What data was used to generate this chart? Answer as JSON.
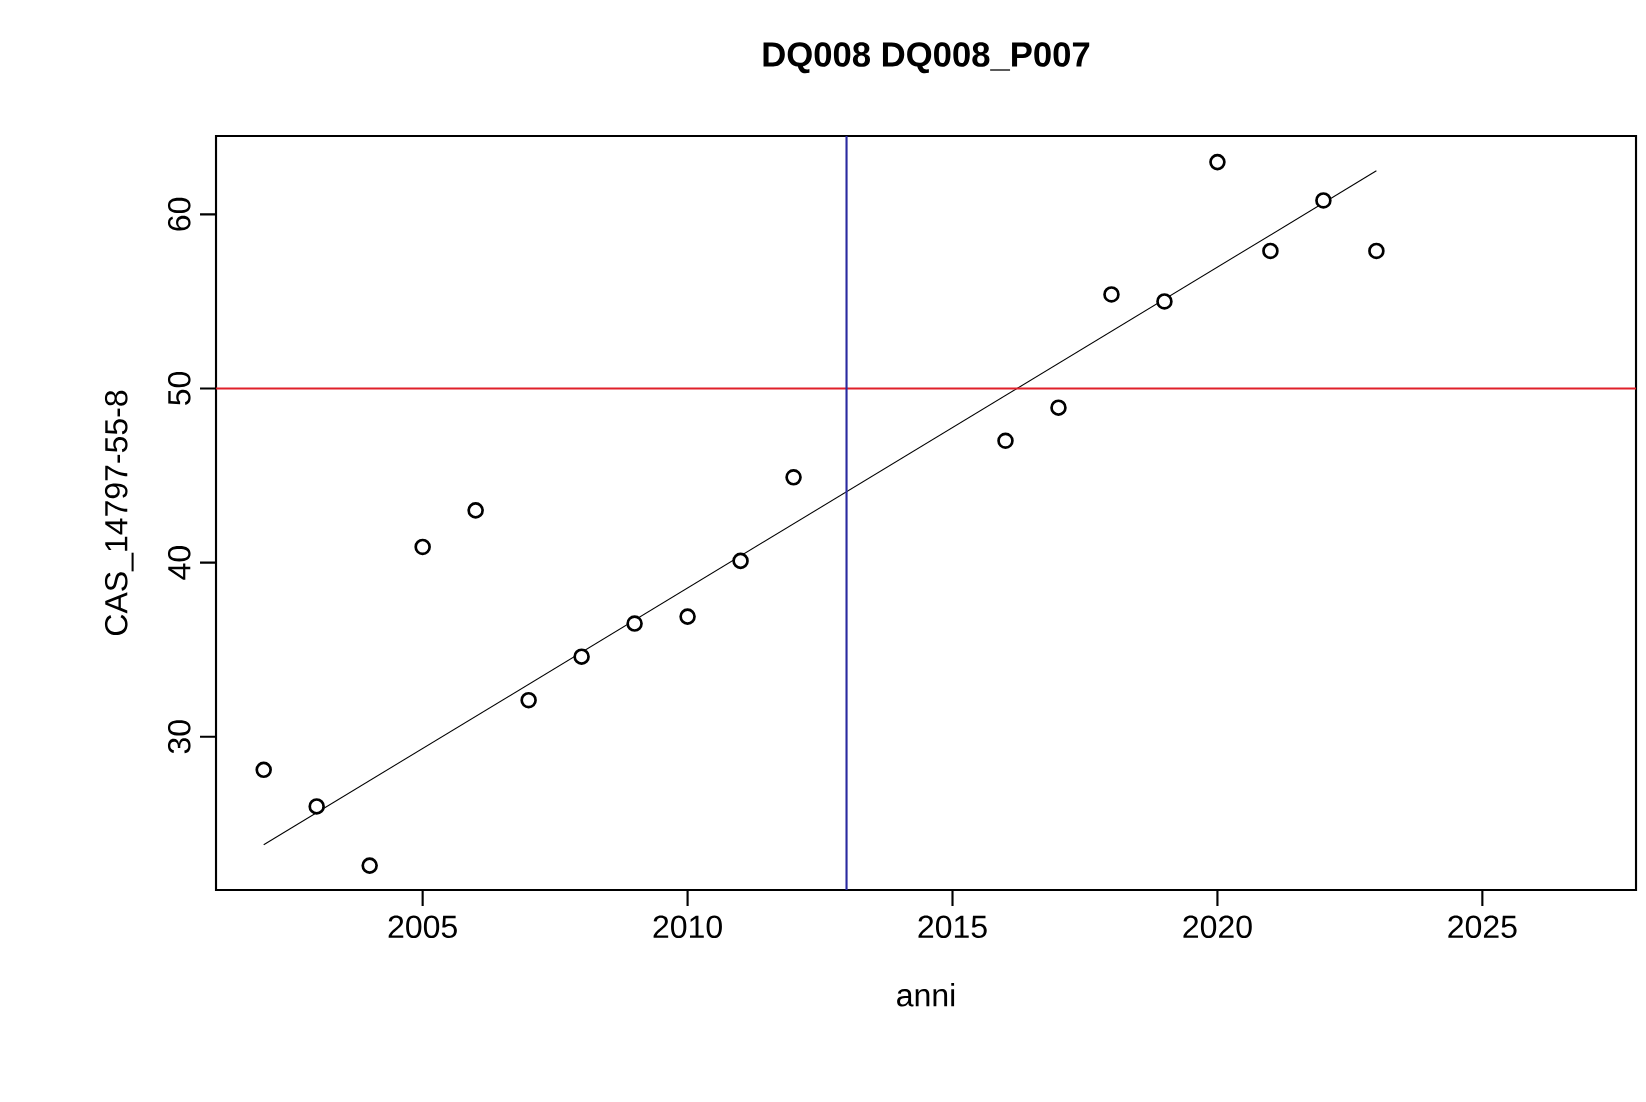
{
  "chart_data": {
    "type": "scatter",
    "title": "DQ008 DQ008_P007",
    "xlabel": "anni",
    "ylabel": "CAS_14797-55-8",
    "xlim": [
      2001.1,
      2027.9
    ],
    "ylim": [
      21.2,
      64.5
    ],
    "xticks": [
      2005,
      2010,
      2015,
      2020,
      2025
    ],
    "yticks": [
      30,
      40,
      50,
      60
    ],
    "series": [
      {
        "color": "#000000",
        "marker": "circle",
        "x": [
          2002,
          2003,
          2004,
          2005,
          2006,
          2007,
          2008,
          2009,
          2010,
          2011,
          2012,
          2016,
          2017,
          2018,
          2019,
          2020,
          2021,
          2022,
          2023
        ],
        "values": [
          28.1,
          26.0,
          22.6,
          40.9,
          43.0,
          32.1,
          34.6,
          36.5,
          36.9,
          40.1,
          44.9,
          47.0,
          48.9,
          55.4,
          55.0,
          63.0,
          57.9,
          60.8,
          57.9
        ]
      },
      {
        "type": "line",
        "color": "#000000",
        "marker": "none",
        "line_style": "solid",
        "x": [
          2002,
          2023
        ],
        "values": [
          23.8,
          62.5
        ]
      }
    ],
    "ref_lines": [
      {
        "axis": "y",
        "value": 50,
        "color": "#e0202a"
      },
      {
        "axis": "x",
        "value": 2013,
        "color": "#2a2aa0"
      }
    ]
  }
}
